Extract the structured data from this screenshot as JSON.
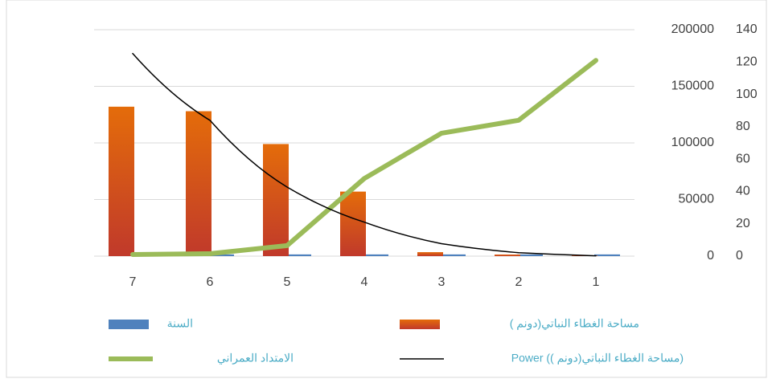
{
  "chart_data": {
    "type": "bar",
    "categories": [
      "7",
      "6",
      "5",
      "4",
      "3",
      "2",
      "1"
    ],
    "series": [
      {
        "name": "السنة",
        "type": "bar",
        "color": "#4f81bd",
        "values": [
          1500,
          1500,
          1500,
          1500,
          1500,
          1500,
          1500
        ]
      },
      {
        "name": "مساحة الغطاء النباتي(دونم )",
        "type": "bar",
        "color": "#e46c0a",
        "values": [
          132000,
          128000,
          99000,
          57000,
          3500,
          1400,
          500
        ]
      },
      {
        "name": "الامتداد العمراني",
        "type": "line",
        "axis": "y2",
        "color": "#9bbb59",
        "values": [
          1,
          1.5,
          6.5,
          48,
          76,
          84,
          121
        ]
      },
      {
        "name": "Power (مساحة الغطاء النباتي(دونم ))",
        "type": "line",
        "color": "#000000",
        "values": [
          179000,
          120000,
          61000,
          30000,
          11000,
          3000,
          300
        ]
      }
    ],
    "ylim": [
      0,
      200000
    ],
    "yticks": [
      0,
      50000,
      100000,
      150000,
      200000
    ],
    "y2lim": [
      0,
      140
    ],
    "y2ticks": [
      0,
      20,
      40,
      60,
      80,
      100,
      120,
      140
    ],
    "grid": true
  }
}
